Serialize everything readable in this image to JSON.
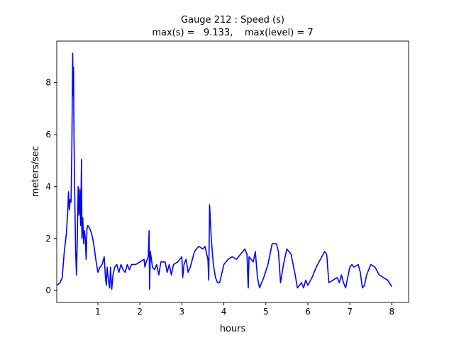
{
  "chart_data": {
    "type": "line",
    "title": "Gauge 212 : Speed (s)",
    "subtitle": "max(s) =   9.133,    max(level) = 7",
    "xlabel": "hours",
    "ylabel": "meters/sec",
    "xlim": [
      0.02,
      8.4
    ],
    "xticks": [
      1,
      2,
      3,
      4,
      5,
      6,
      7,
      8
    ],
    "ylim": [
      -0.46,
      9.6
    ],
    "yticks": [
      0,
      2,
      4,
      6,
      8
    ],
    "color": "#0000ff",
    "x": [
      0.02,
      0.1,
      0.15,
      0.2,
      0.25,
      0.28,
      0.3,
      0.32,
      0.34,
      0.36,
      0.38,
      0.4,
      0.41,
      0.42,
      0.43,
      0.45,
      0.47,
      0.49,
      0.51,
      0.53,
      0.55,
      0.57,
      0.59,
      0.61,
      0.62,
      0.64,
      0.66,
      0.68,
      0.7,
      0.72,
      0.74,
      0.76,
      0.8,
      0.85,
      0.9,
      0.95,
      1.0,
      1.05,
      1.1,
      1.15,
      1.18,
      1.2,
      1.22,
      1.25,
      1.28,
      1.3,
      1.33,
      1.36,
      1.4,
      1.45,
      1.5,
      1.55,
      1.6,
      1.65,
      1.7,
      1.75,
      1.8,
      1.9,
      2.0,
      2.1,
      2.12,
      2.15,
      2.2,
      2.22,
      2.23,
      2.25,
      2.3,
      2.35,
      2.4,
      2.45,
      2.5,
      2.6,
      2.65,
      2.7,
      2.75,
      2.8,
      2.9,
      3.0,
      3.02,
      3.05,
      3.1,
      3.15,
      3.2,
      3.3,
      3.4,
      3.5,
      3.55,
      3.62,
      3.64,
      3.66,
      3.7,
      3.75,
      3.8,
      3.85,
      3.9,
      4.0,
      4.1,
      4.2,
      4.3,
      4.4,
      4.5,
      4.55,
      4.58,
      4.6,
      4.7,
      4.75,
      4.8,
      4.85,
      4.95,
      5.05,
      5.15,
      5.25,
      5.3,
      5.35,
      5.42,
      5.5,
      5.6,
      5.7,
      5.75,
      5.85,
      5.9,
      5.95,
      6.0,
      6.1,
      6.2,
      6.3,
      6.4,
      6.45,
      6.5,
      6.6,
      6.7,
      6.75,
      6.8,
      6.85,
      6.9,
      7.0,
      7.05,
      7.1,
      7.2,
      7.25,
      7.3,
      7.35,
      7.4,
      7.5,
      7.6,
      7.7,
      7.8,
      7.9,
      8.0
    ],
    "values": [
      0.2,
      0.3,
      0.5,
      1.5,
      2.2,
      3.0,
      3.8,
      3.1,
      3.5,
      3.4,
      5.5,
      9.133,
      7.5,
      8.6,
      6.0,
      3.5,
      1.5,
      0.6,
      2.0,
      4.0,
      2.9,
      3.9,
      2.5,
      5.05,
      2.0,
      2.8,
      1.8,
      2.3,
      2.0,
      1.2,
      2.4,
      2.5,
      2.4,
      2.2,
      1.8,
      1.2,
      0.7,
      0.9,
      1.0,
      1.3,
      0.5,
      0.2,
      0.9,
      0.4,
      0.1,
      0.9,
      0.05,
      0.6,
      0.9,
      1.0,
      0.7,
      1.0,
      0.8,
      0.7,
      1.0,
      0.8,
      1.0,
      1.0,
      1.1,
      1.2,
      0.9,
      1.1,
      1.3,
      2.3,
      0.05,
      1.5,
      0.9,
      0.8,
      1.0,
      0.6,
      1.1,
      1.1,
      0.7,
      1.0,
      0.6,
      1.0,
      1.1,
      1.3,
      0.5,
      1.0,
      1.2,
      0.7,
      0.9,
      1.5,
      1.7,
      1.6,
      1.7,
      1.2,
      0.4,
      3.3,
      2.0,
      1.0,
      0.5,
      0.3,
      0.3,
      1.0,
      1.2,
      1.3,
      1.2,
      1.4,
      1.6,
      1.4,
      0.1,
      1.3,
      1.1,
      1.5,
      0.5,
      0.1,
      0.5,
      1.0,
      1.8,
      1.8,
      1.5,
      0.3,
      1.0,
      1.6,
      1.4,
      0.6,
      0.1,
      0.3,
      0.1,
      0.4,
      0.2,
      0.5,
      0.9,
      1.2,
      1.5,
      1.4,
      0.3,
      0.4,
      0.5,
      0.3,
      0.6,
      0.3,
      0.1,
      0.9,
      1.0,
      0.9,
      1.0,
      0.7,
      0.1,
      0.2,
      0.6,
      1.0,
      0.9,
      0.6,
      0.5,
      0.4,
      0.15
    ]
  }
}
